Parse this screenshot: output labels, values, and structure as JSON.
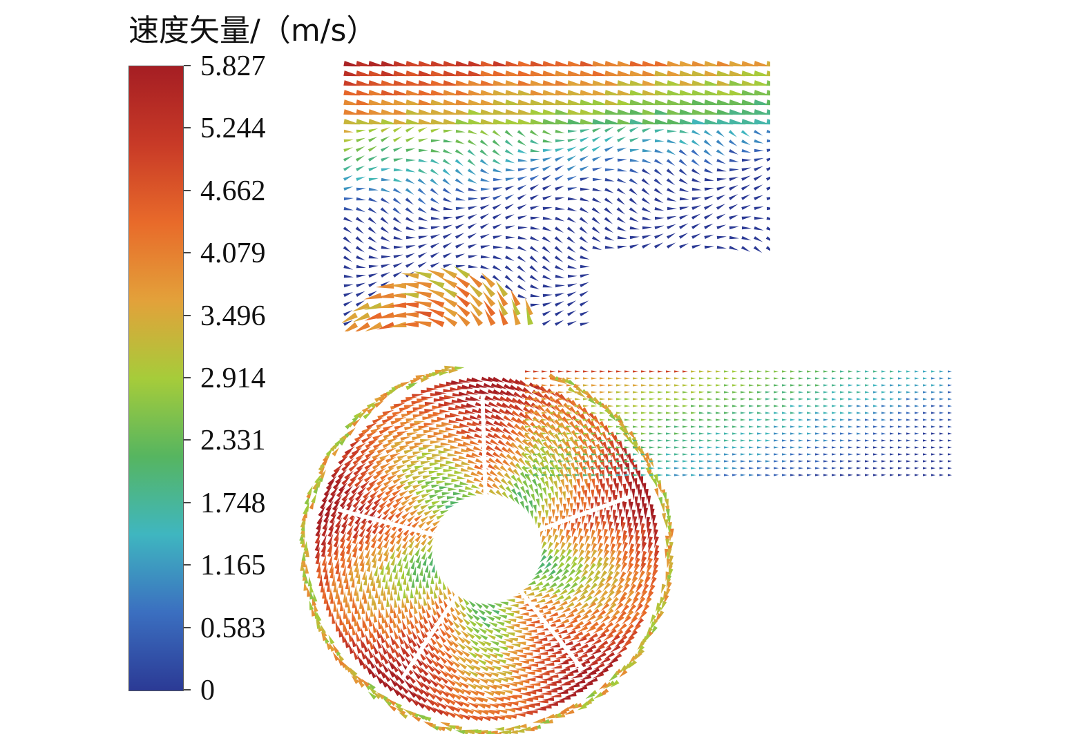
{
  "legend": {
    "title": "速度矢量/（m/s）",
    "ticks": [
      "5.827",
      "5.244",
      "4.662",
      "4.079",
      "3.496",
      "2.914",
      "2.331",
      "1.748",
      "1.165",
      "0.583",
      "0"
    ]
  },
  "colors": {
    "colormap": [
      "#2b3a95",
      "#3b6fc0",
      "#3fb6c0",
      "#56b560",
      "#a6cc3a",
      "#e3a13a",
      "#e86a2a",
      "#c83a27",
      "#a51e23"
    ]
  }
}
